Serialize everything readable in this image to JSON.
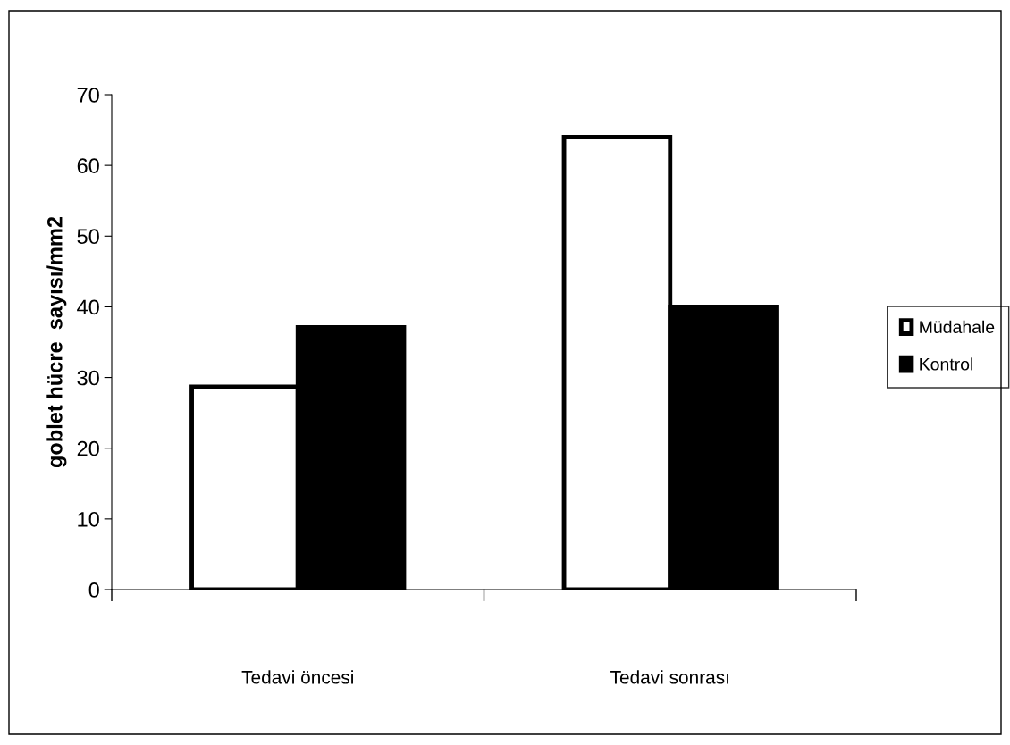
{
  "chart_data": {
    "type": "bar",
    "ylabel": "goblet hücre  sayısı/mm2",
    "categories": [
      "Tedavi öncesi",
      "Tedavi sonrası"
    ],
    "series": [
      {
        "name": "Müdahale",
        "color": "#ffffff",
        "values": [
          28.7,
          64
        ]
      },
      {
        "name": "Kontrol",
        "color": "#000000",
        "values": [
          37.1,
          40
        ]
      }
    ],
    "ylim": [
      0,
      70
    ],
    "yticks": [
      0,
      10,
      20,
      30,
      40,
      50,
      60,
      70
    ],
    "grid": false,
    "legend": "right"
  }
}
